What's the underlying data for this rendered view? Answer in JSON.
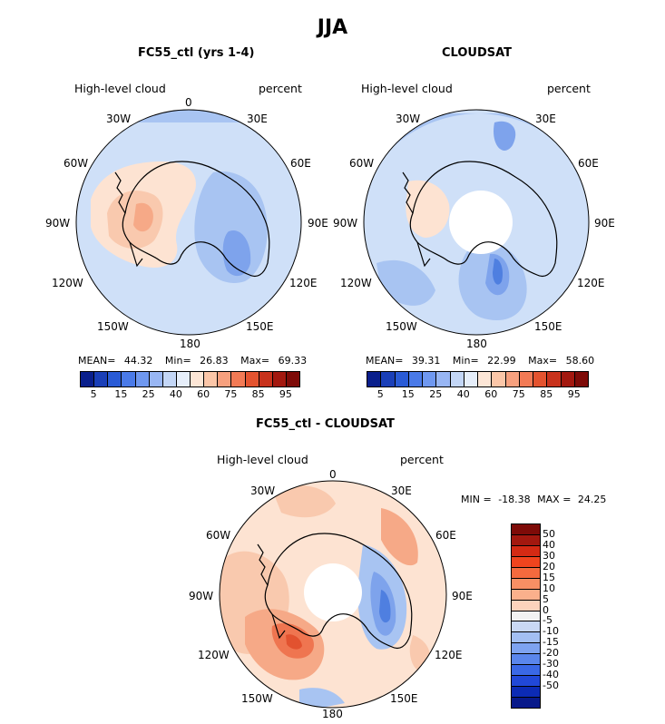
{
  "figure": {
    "title": "JJA",
    "field_label": "High-level cloud",
    "units_label": "percent"
  },
  "longitude_labels": [
    "0",
    "30E",
    "60E",
    "90E",
    "120E",
    "150E",
    "180",
    "150W",
    "120W",
    "90W",
    "60W",
    "30W"
  ],
  "panels": [
    {
      "id": "model",
      "title": "FC55_ctl (yrs 1-4)",
      "stats": {
        "mean_label": "MEAN=",
        "mean": "44.32",
        "min_label": "Min=",
        "min": "26.83",
        "max_label": "Max=",
        "max": "69.33"
      }
    },
    {
      "id": "obs",
      "title": "CLOUDSAT",
      "stats": {
        "mean_label": "MEAN=",
        "mean": "39.31",
        "min_label": "Min=",
        "min": "22.99",
        "max_label": "Max=",
        "max": "58.60"
      }
    },
    {
      "id": "diff",
      "title": "FC55_ctl - CLOUDSAT",
      "stats": {
        "min_label": "MIN =",
        "min": "-18.38",
        "max_label": "MAX =",
        "max": "24.25"
      }
    }
  ],
  "colorbar_abs": {
    "colors": [
      "#0a1f8c",
      "#1a3fb8",
      "#2a5bd6",
      "#4a7ae8",
      "#6f98f0",
      "#98b6f4",
      "#c3d6f6",
      "#e6eefa",
      "#fde6d6",
      "#fbc6a8",
      "#f7a07e",
      "#f27a55",
      "#e4532f",
      "#c8321c",
      "#a3180f",
      "#7e0b08"
    ],
    "tick_labels": [
      "5",
      "15",
      "25",
      "40",
      "60",
      "75",
      "85",
      "95"
    ]
  },
  "colorbar_diff": {
    "colors": [
      "#7e0b08",
      "#a3180f",
      "#d42a14",
      "#f0441e",
      "#f56a3e",
      "#f88f64",
      "#fab08c",
      "#fcd3bc",
      "#f2f2f2",
      "#c9d8f4",
      "#a3bff2",
      "#7ea3f0",
      "#5a86ec",
      "#3a68e6",
      "#2148d8",
      "#0c2bb5",
      "#08198a"
    ],
    "tick_labels": [
      "50",
      "40",
      "30",
      "20",
      "15",
      "10",
      "5",
      "0",
      "-5",
      "-10",
      "-15",
      "-20",
      "-30",
      "-40",
      "-50"
    ]
  },
  "palette": {
    "light_blue": "#cfe0f8",
    "mid_blue": "#a8c4f2",
    "blue": "#7ea3ec",
    "dark_blue": "#4f7fe0",
    "peach": "#fde3d2",
    "light_salmon": "#f9c9ae",
    "salmon": "#f6a987",
    "orange_red": "#ef7550",
    "red": "#e2522f",
    "white": "#ffffff"
  }
}
